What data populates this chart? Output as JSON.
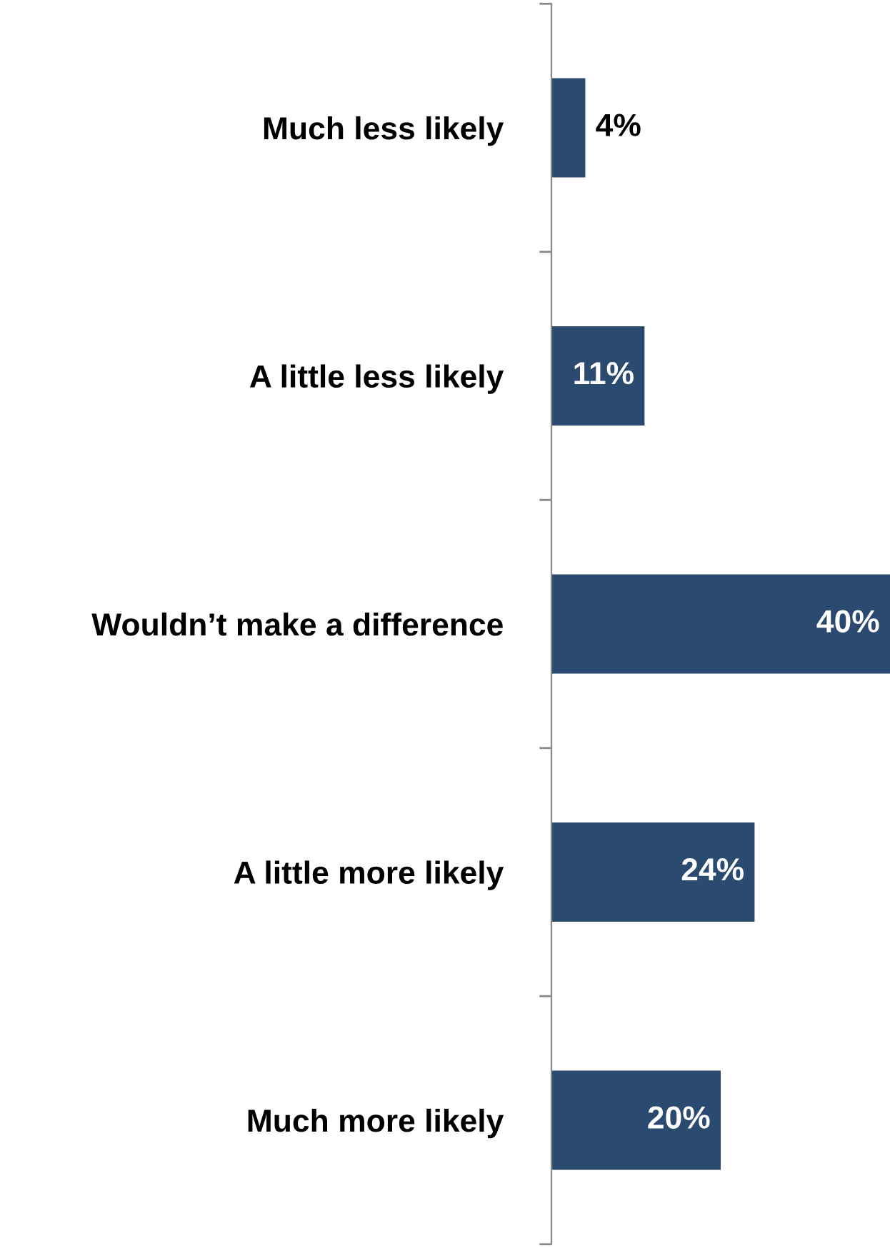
{
  "chart_data": {
    "type": "bar",
    "orientation": "horizontal",
    "categories": [
      "Much less likely",
      "A little less likely",
      "Wouldn’t make a difference",
      "A little more likely",
      "Much more likely"
    ],
    "values": [
      4,
      11,
      40,
      24,
      20
    ],
    "value_labels": [
      "4%",
      "11%",
      "40%",
      "24%",
      "20%"
    ],
    "color": "#2a4a70",
    "grid": false,
    "legend": false
  }
}
